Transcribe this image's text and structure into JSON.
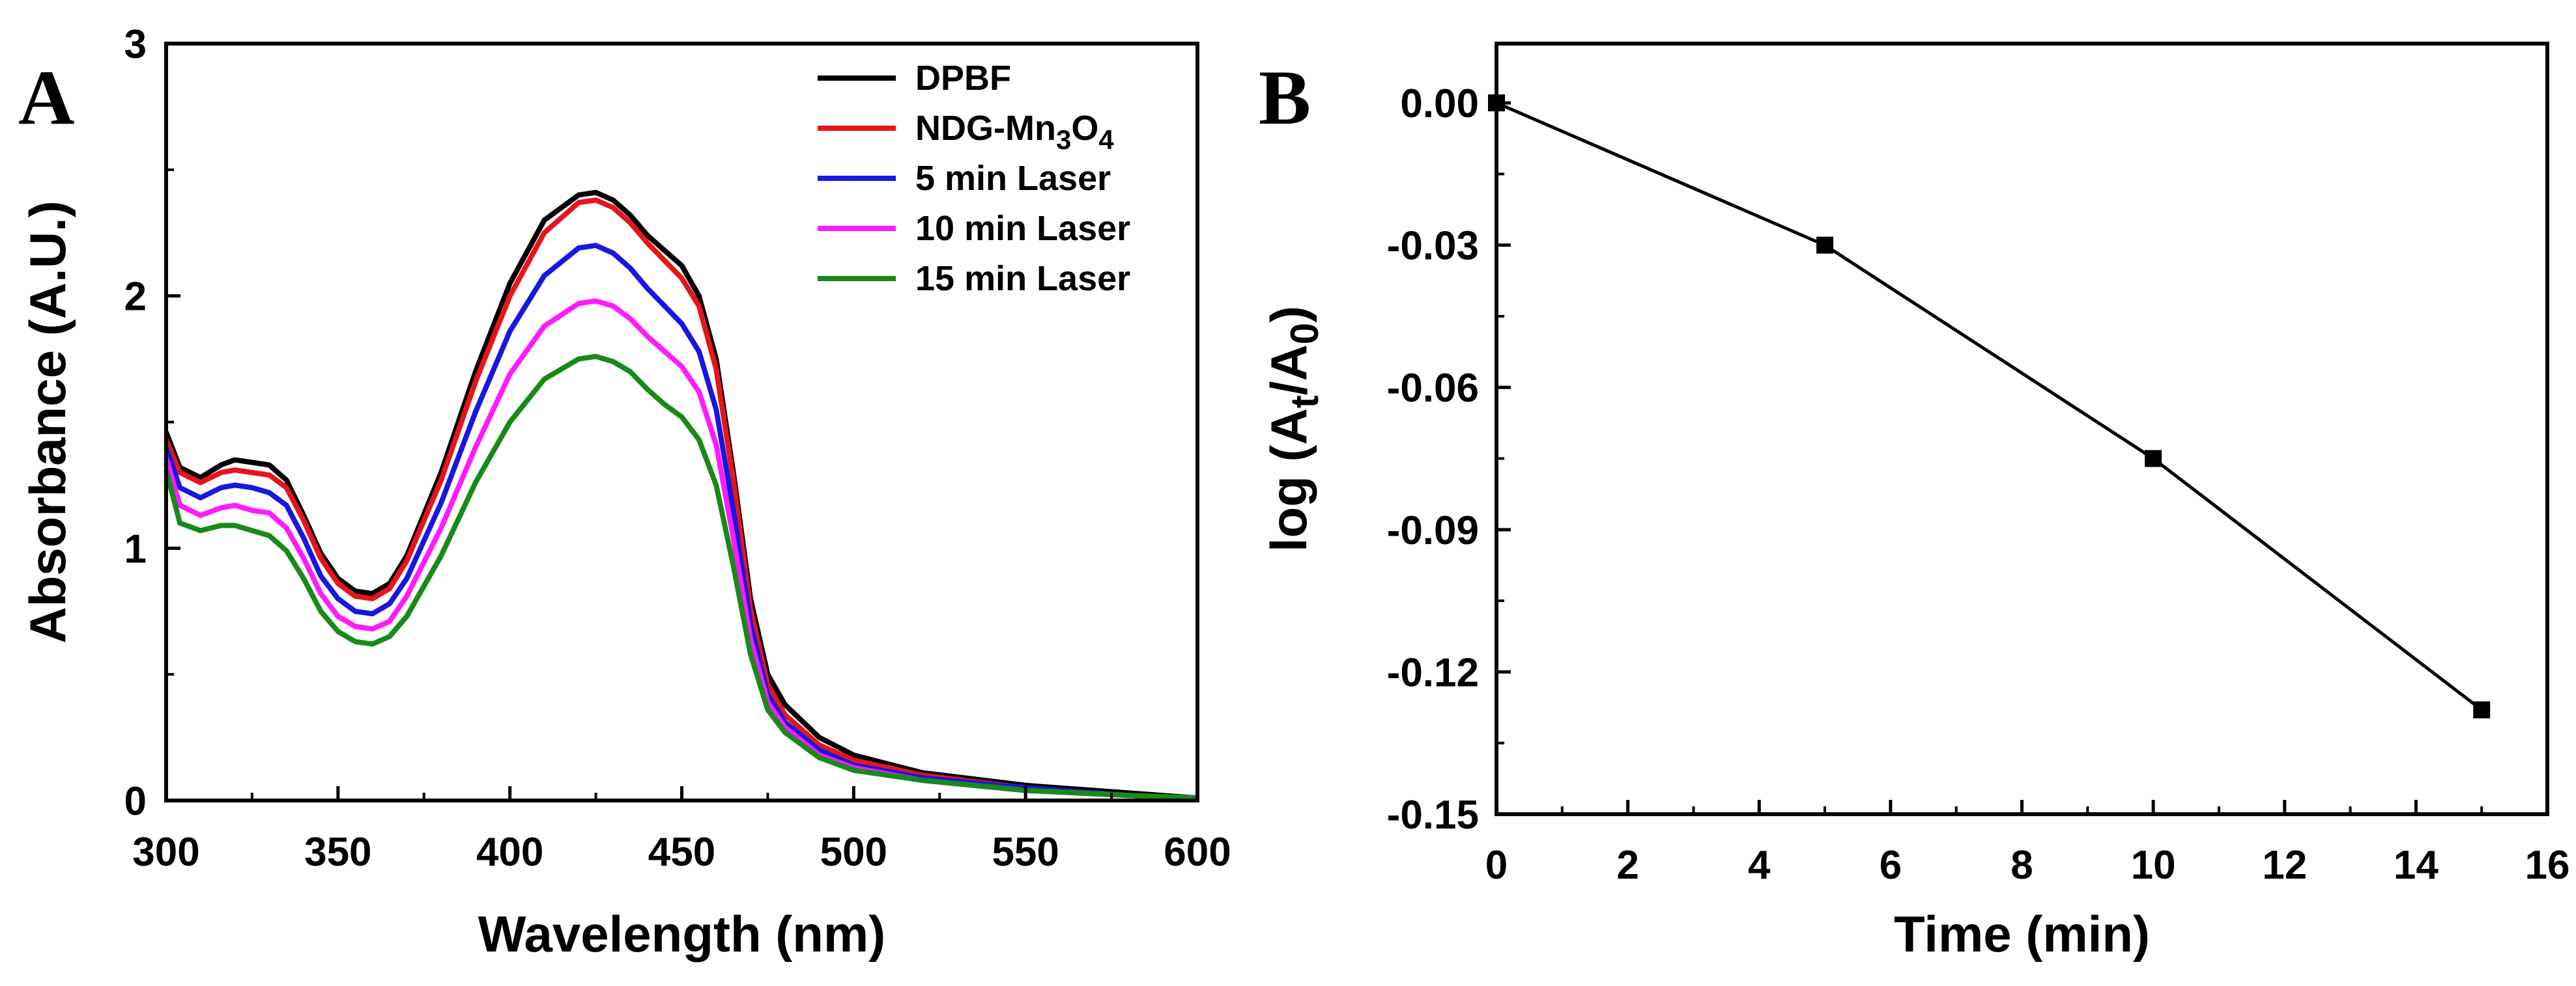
{
  "chart_data": [
    {
      "panel": "A",
      "type": "line",
      "xlabel": "Wavelength (nm)",
      "ylabel": "Absorbance (A.U.)",
      "xlim": [
        300,
        600
      ],
      "ylim": [
        0,
        3
      ],
      "x_ticks": [
        300,
        350,
        400,
        450,
        500,
        550,
        600
      ],
      "y_ticks": [
        0,
        1,
        2,
        3
      ],
      "legend_position": "top-right",
      "series": [
        {
          "name": "DPBF",
          "legend_label": {
            "main": "DPBF"
          },
          "color": "#000000",
          "x": [
            300,
            304,
            310,
            316,
            320,
            325,
            330,
            335,
            340,
            345,
            350,
            355,
            360,
            365,
            370,
            380,
            390,
            400,
            410,
            420,
            425,
            430,
            435,
            440,
            445,
            450,
            455,
            460,
            465,
            470,
            475,
            480,
            490,
            500,
            520,
            550,
            580,
            600
          ],
          "y": [
            1.46,
            1.32,
            1.28,
            1.33,
            1.35,
            1.34,
            1.33,
            1.27,
            1.13,
            0.98,
            0.88,
            0.83,
            0.82,
            0.86,
            0.97,
            1.3,
            1.7,
            2.05,
            2.3,
            2.4,
            2.41,
            2.38,
            2.32,
            2.24,
            2.18,
            2.12,
            2.0,
            1.75,
            1.3,
            0.8,
            0.5,
            0.38,
            0.25,
            0.18,
            0.11,
            0.06,
            0.03,
            0.01
          ]
        },
        {
          "name": "NDG-Mn3O4",
          "legend_label": {
            "main": "NDG-Mn",
            "sub1": "3",
            "mid": "O",
            "sub2": "4"
          },
          "color": "#e8141b",
          "x": [
            300,
            304,
            310,
            316,
            320,
            325,
            330,
            335,
            340,
            345,
            350,
            355,
            360,
            365,
            370,
            380,
            390,
            400,
            410,
            420,
            425,
            430,
            435,
            440,
            445,
            450,
            455,
            460,
            465,
            470,
            475,
            480,
            490,
            500,
            520,
            550,
            580,
            600
          ],
          "y": [
            1.43,
            1.3,
            1.26,
            1.3,
            1.31,
            1.3,
            1.29,
            1.24,
            1.11,
            0.96,
            0.86,
            0.81,
            0.8,
            0.84,
            0.95,
            1.27,
            1.66,
            2.0,
            2.25,
            2.37,
            2.38,
            2.35,
            2.29,
            2.21,
            2.14,
            2.07,
            1.96,
            1.71,
            1.27,
            0.76,
            0.46,
            0.34,
            0.22,
            0.16,
            0.1,
            0.05,
            0.02,
            0.01
          ]
        },
        {
          "name": "5 min Laser",
          "legend_label": {
            "main": "5 min Laser"
          },
          "color": "#1717e0",
          "x": [
            300,
            304,
            310,
            316,
            320,
            325,
            330,
            335,
            340,
            345,
            350,
            355,
            360,
            365,
            370,
            380,
            390,
            400,
            410,
            420,
            425,
            430,
            435,
            440,
            445,
            450,
            455,
            460,
            465,
            470,
            475,
            480,
            490,
            500,
            520,
            550,
            580,
            600
          ],
          "y": [
            1.4,
            1.24,
            1.2,
            1.24,
            1.25,
            1.24,
            1.22,
            1.17,
            1.04,
            0.89,
            0.8,
            0.75,
            0.74,
            0.78,
            0.88,
            1.18,
            1.54,
            1.86,
            2.08,
            2.19,
            2.2,
            2.17,
            2.11,
            2.03,
            1.96,
            1.89,
            1.78,
            1.55,
            1.15,
            0.7,
            0.42,
            0.31,
            0.2,
            0.14,
            0.09,
            0.05,
            0.02,
            0.01
          ]
        },
        {
          "name": "10 min Laser",
          "legend_label": {
            "main": "10 min Laser"
          },
          "color": "#ff1aff",
          "x": [
            300,
            304,
            310,
            316,
            320,
            325,
            330,
            335,
            340,
            345,
            350,
            355,
            360,
            365,
            370,
            380,
            390,
            400,
            410,
            420,
            425,
            430,
            435,
            440,
            445,
            450,
            455,
            460,
            465,
            470,
            475,
            480,
            490,
            500,
            520,
            550,
            580,
            600
          ],
          "y": [
            1.36,
            1.17,
            1.13,
            1.16,
            1.17,
            1.15,
            1.14,
            1.08,
            0.96,
            0.82,
            0.73,
            0.69,
            0.68,
            0.71,
            0.81,
            1.08,
            1.4,
            1.69,
            1.88,
            1.97,
            1.98,
            1.96,
            1.91,
            1.84,
            1.78,
            1.72,
            1.62,
            1.41,
            1.04,
            0.64,
            0.39,
            0.29,
            0.18,
            0.13,
            0.08,
            0.04,
            0.02,
            0.01
          ]
        },
        {
          "name": "15 min Laser",
          "legend_label": {
            "main": "15 min Laser"
          },
          "color": "#188a18",
          "x": [
            300,
            304,
            310,
            316,
            320,
            325,
            330,
            335,
            340,
            345,
            350,
            355,
            360,
            365,
            370,
            380,
            390,
            400,
            410,
            420,
            425,
            430,
            435,
            440,
            445,
            450,
            455,
            460,
            465,
            470,
            475,
            480,
            490,
            500,
            520,
            550,
            580,
            600
          ],
          "y": [
            1.31,
            1.1,
            1.07,
            1.09,
            1.09,
            1.07,
            1.05,
            0.99,
            0.88,
            0.75,
            0.67,
            0.63,
            0.62,
            0.65,
            0.73,
            0.97,
            1.26,
            1.5,
            1.67,
            1.75,
            1.76,
            1.74,
            1.7,
            1.63,
            1.57,
            1.52,
            1.43,
            1.25,
            0.93,
            0.58,
            0.36,
            0.27,
            0.17,
            0.12,
            0.08,
            0.04,
            0.02,
            0.01
          ]
        }
      ]
    },
    {
      "panel": "B",
      "type": "line",
      "xlabel": "Time (min)",
      "ylabel": {
        "main": "log (A",
        "sub1": "t",
        "mid": "/A",
        "sub2": "0",
        "end": ")"
      },
      "xlim": [
        0,
        16
      ],
      "ylim": [
        -0.15,
        0.0125
      ],
      "x_ticks": [
        0,
        2,
        4,
        6,
        8,
        10,
        12,
        14,
        16
      ],
      "y_ticks": [
        0.0,
        -0.03,
        -0.06,
        -0.09,
        -0.12,
        -0.15
      ],
      "y_tick_labels": [
        "0.00",
        "-0.03",
        "-0.06",
        "-0.09",
        "-0.12",
        "-0.15"
      ],
      "series": [
        {
          "name": "log(At/A0)",
          "color": "#000000",
          "marker": "square",
          "x": [
            0,
            5,
            10,
            15
          ],
          "y": [
            0.0,
            -0.03,
            -0.075,
            -0.128
          ]
        }
      ]
    }
  ]
}
